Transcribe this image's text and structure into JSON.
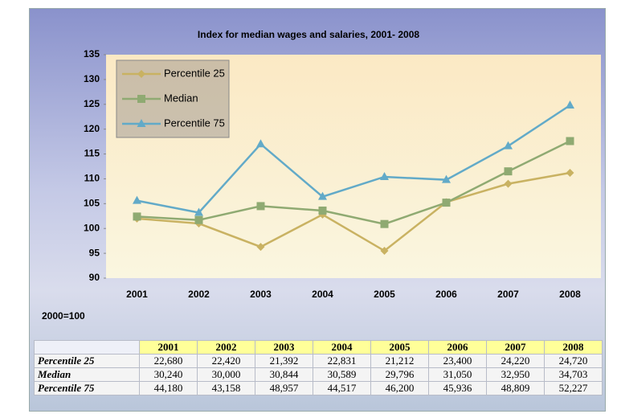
{
  "chart_data": {
    "type": "line",
    "title": "Index for median wages and salaries, 2001- 2008",
    "note": "2000=100",
    "categories": [
      "2001",
      "2002",
      "2003",
      "2004",
      "2005",
      "2006",
      "2007",
      "2008"
    ],
    "series": [
      {
        "name": "Percentile 25",
        "color": "#c9b262",
        "marker": "diamond",
        "values": [
          102,
          101,
          96.3,
          102.8,
          95.5,
          105.3,
          109,
          111.2
        ]
      },
      {
        "name": "Median",
        "color": "#8faa72",
        "marker": "square",
        "values": [
          102.4,
          101.7,
          104.5,
          103.6,
          100.9,
          105.2,
          111.5,
          117.6
        ]
      },
      {
        "name": "Percentile 75",
        "color": "#62aac8",
        "marker": "triangle",
        "values": [
          105.6,
          103.2,
          117,
          106.4,
          110.4,
          109.8,
          116.6,
          124.8
        ]
      }
    ],
    "ylim": [
      90,
      135
    ],
    "yticks": [
      90,
      95,
      100,
      105,
      110,
      115,
      120,
      125,
      130,
      135
    ],
    "legend": "upper left"
  },
  "table": {
    "header": [
      "2001",
      "2002",
      "2003",
      "2004",
      "2005",
      "2006",
      "2007",
      "2008"
    ],
    "rows": [
      [
        "Percentile 25",
        "22,680",
        "22,420",
        "21,392",
        "22,831",
        "21,212",
        "23,400",
        "24,220",
        "24,720"
      ],
      [
        "Median",
        "30,240",
        "30,000",
        "30,844",
        "30,589",
        "29,796",
        "31,050",
        "32,950",
        "34,703"
      ],
      [
        "Percentile 75",
        "44,180",
        "43,158",
        "48,957",
        "44,517",
        "46,200",
        "45,936",
        "48,809",
        "52,227"
      ]
    ]
  }
}
